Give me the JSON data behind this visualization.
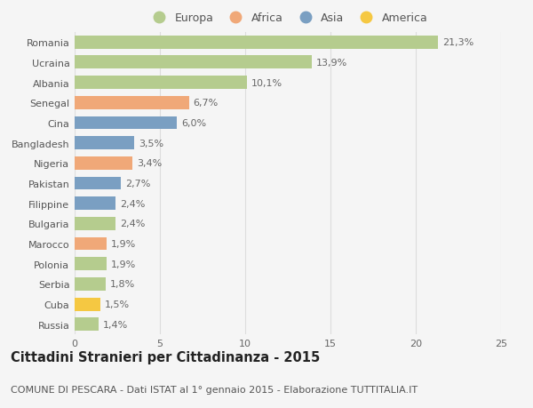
{
  "countries": [
    "Romania",
    "Ucraina",
    "Albania",
    "Senegal",
    "Cina",
    "Bangladesh",
    "Nigeria",
    "Pakistan",
    "Filippine",
    "Bulgaria",
    "Marocco",
    "Polonia",
    "Serbia",
    "Cuba",
    "Russia"
  ],
  "values": [
    21.3,
    13.9,
    10.1,
    6.7,
    6.0,
    3.5,
    3.4,
    2.7,
    2.4,
    2.4,
    1.9,
    1.9,
    1.8,
    1.5,
    1.4
  ],
  "labels": [
    "21,3%",
    "13,9%",
    "10,1%",
    "6,7%",
    "6,0%",
    "3,5%",
    "3,4%",
    "2,7%",
    "2,4%",
    "2,4%",
    "1,9%",
    "1,9%",
    "1,8%",
    "1,5%",
    "1,4%"
  ],
  "continents": [
    "Europa",
    "Europa",
    "Europa",
    "Africa",
    "Asia",
    "Asia",
    "Africa",
    "Asia",
    "Asia",
    "Europa",
    "Africa",
    "Europa",
    "Europa",
    "America",
    "Europa"
  ],
  "continent_colors": {
    "Europa": "#b5cc8e",
    "Africa": "#f0a878",
    "Asia": "#7a9fc2",
    "America": "#f5c842"
  },
  "legend_order": [
    "Europa",
    "Africa",
    "Asia",
    "America"
  ],
  "title": "Cittadini Stranieri per Cittadinanza - 2015",
  "subtitle": "COMUNE DI PESCARA - Dati ISTAT al 1° gennaio 2015 - Elaborazione TUTTITALIA.IT",
  "xlim": [
    0,
    25
  ],
  "xticks": [
    0,
    5,
    10,
    15,
    20,
    25
  ],
  "background_color": "#f5f5f5",
  "grid_color": "#dddddd",
  "bar_height": 0.65,
  "title_fontsize": 10.5,
  "subtitle_fontsize": 8,
  "label_fontsize": 8,
  "tick_fontsize": 8,
  "legend_fontsize": 9
}
